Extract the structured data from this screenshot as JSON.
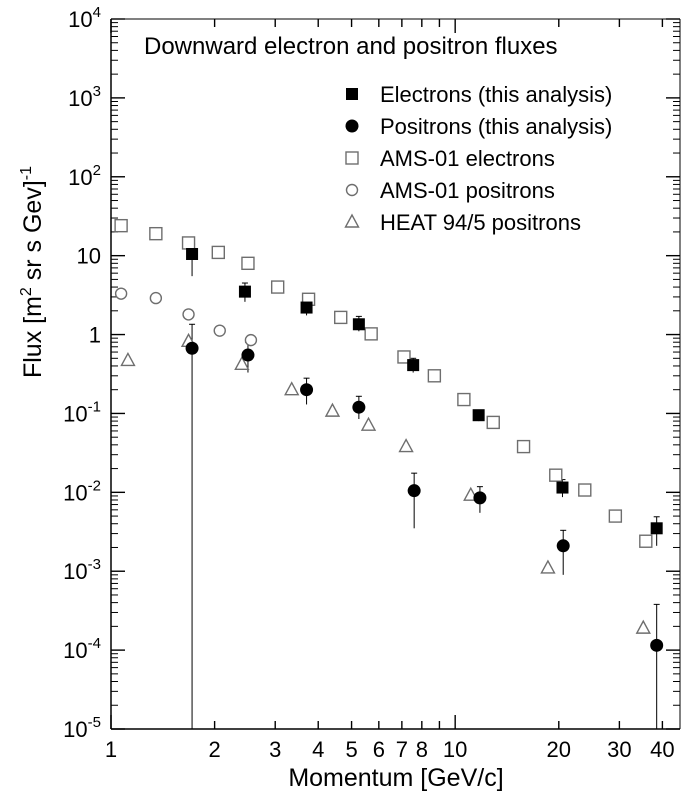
{
  "chart_data": {
    "type": "scatter",
    "title": "Downward electron and positron fluxes",
    "xlabel": "Momentum [GeV/c]",
    "ylabel_main": "Flux [m",
    "ylabel_sup2": "2",
    "ylabel_rest": " sr s Gev]",
    "ylabel_sup": "-1",
    "xscale": "log",
    "yscale": "log",
    "xlim": [
      1,
      45
    ],
    "ylim": [
      1e-05,
      10000
    ],
    "x_ticks": [
      {
        "v": 1,
        "label": "1"
      },
      {
        "v": 2,
        "label": "2"
      },
      {
        "v": 3,
        "label": "3"
      },
      {
        "v": 4,
        "label": "4"
      },
      {
        "v": 5,
        "label": "5"
      },
      {
        "v": 6,
        "label": "6"
      },
      {
        "v": 7,
        "label": "7"
      },
      {
        "v": 8,
        "label": "8"
      },
      {
        "v": 10,
        "label": "10"
      },
      {
        "v": 20,
        "label": "20"
      },
      {
        "v": 30,
        "label": "30"
      },
      {
        "v": 40,
        "label": "40"
      }
    ],
    "x_minor": [
      9
    ],
    "y_ticks": [
      {
        "exp": -5,
        "base": "10",
        "sup": "-5"
      },
      {
        "exp": -4,
        "base": "10",
        "sup": "-4"
      },
      {
        "exp": -3,
        "base": "10",
        "sup": "-3"
      },
      {
        "exp": -2,
        "base": "10",
        "sup": "-2"
      },
      {
        "exp": -1,
        "base": "10",
        "sup": "-1"
      },
      {
        "exp": 0,
        "base": "1",
        "sup": ""
      },
      {
        "exp": 1,
        "base": "10",
        "sup": ""
      },
      {
        "exp": 2,
        "base": "10",
        "sup": "2"
      },
      {
        "exp": 3,
        "base": "10",
        "sup": "3"
      },
      {
        "exp": 4,
        "base": "10",
        "sup": "4"
      }
    ],
    "legend_position": "top-right",
    "series": [
      {
        "name": "Electrons (this analysis)",
        "marker": "square-filled",
        "points": [
          {
            "x": 1.72,
            "y": 10.5,
            "lo": 5.5,
            "hi": 14
          },
          {
            "x": 2.45,
            "y": 3.5,
            "lo": 2.6,
            "hi": 4.5
          },
          {
            "x": 3.7,
            "y": 2.2,
            "lo": 1.75,
            "hi": 2.8
          },
          {
            "x": 5.25,
            "y": 1.35,
            "lo": 1.1,
            "hi": 1.7
          },
          {
            "x": 7.55,
            "y": 0.41,
            "lo": 0.33,
            "hi": 0.5
          },
          {
            "x": 11.7,
            "y": 0.095,
            "lo": 0.08,
            "hi": 0.11
          },
          {
            "x": 20.5,
            "y": 0.0115,
            "lo": 0.0087,
            "hi": 0.0145
          },
          {
            "x": 38.5,
            "y": 0.0035,
            "lo": 0.0021,
            "hi": 0.0049
          }
        ]
      },
      {
        "name": "Positrons (this analysis)",
        "marker": "circle-filled",
        "points": [
          {
            "x": 1.72,
            "y": 0.67,
            "lo": 1e-05,
            "hi": 1.35
          },
          {
            "x": 2.5,
            "y": 0.55,
            "lo": 0.33,
            "hi": 0.8
          },
          {
            "x": 3.7,
            "y": 0.2,
            "lo": 0.13,
            "hi": 0.28
          },
          {
            "x": 5.25,
            "y": 0.12,
            "lo": 0.085,
            "hi": 0.165
          },
          {
            "x": 7.6,
            "y": 0.0105,
            "lo": 0.0035,
            "hi": 0.0175
          },
          {
            "x": 11.8,
            "y": 0.0085,
            "lo": 0.0055,
            "hi": 0.0118
          },
          {
            "x": 20.6,
            "y": 0.0021,
            "lo": 0.0009,
            "hi": 0.0033
          },
          {
            "x": 38.5,
            "y": 0.000115,
            "lo": 1e-05,
            "hi": 0.00038
          }
        ]
      },
      {
        "name": "AMS-01 electrons",
        "marker": "square-open",
        "points": [
          {
            "x": 1.07,
            "y": 24
          },
          {
            "x": 1.35,
            "y": 19
          },
          {
            "x": 1.68,
            "y": 14.5
          },
          {
            "x": 2.05,
            "y": 11
          },
          {
            "x": 2.5,
            "y": 8
          },
          {
            "x": 3.05,
            "y": 4
          },
          {
            "x": 3.75,
            "y": 2.8
          },
          {
            "x": 4.65,
            "y": 1.65
          },
          {
            "x": 5.7,
            "y": 1.02
          },
          {
            "x": 7.1,
            "y": 0.52
          },
          {
            "x": 8.7,
            "y": 0.3
          },
          {
            "x": 10.6,
            "y": 0.15
          },
          {
            "x": 12.9,
            "y": 0.077
          },
          {
            "x": 15.8,
            "y": 0.038
          },
          {
            "x": 19.6,
            "y": 0.0165
          },
          {
            "x": 23.8,
            "y": 0.0107
          },
          {
            "x": 29.2,
            "y": 0.005
          },
          {
            "x": 35.8,
            "y": 0.0024
          }
        ]
      },
      {
        "name": "AMS-01 positrons",
        "marker": "circle-open",
        "points": [
          {
            "x": 1.07,
            "y": 3.3
          },
          {
            "x": 1.35,
            "y": 2.9
          },
          {
            "x": 1.68,
            "y": 1.8
          },
          {
            "x": 2.07,
            "y": 1.12
          },
          {
            "x": 2.55,
            "y": 0.85
          }
        ]
      },
      {
        "name": "HEAT 94/5 positrons",
        "marker": "triangle-open",
        "points": [
          {
            "x": 1.12,
            "y": 0.47
          },
          {
            "x": 1.68,
            "y": 0.82
          },
          {
            "x": 2.4,
            "y": 0.42
          },
          {
            "x": 3.35,
            "y": 0.2
          },
          {
            "x": 4.4,
            "y": 0.107
          },
          {
            "x": 5.6,
            "y": 0.071
          },
          {
            "x": 7.2,
            "y": 0.038
          },
          {
            "x": 11.1,
            "y": 0.0092
          },
          {
            "x": 18.6,
            "y": 0.0011
          },
          {
            "x": 35.2,
            "y": 0.00019
          }
        ]
      }
    ]
  },
  "colors": {
    "filled": "#000000",
    "open": "#6e6e6e",
    "axis": "#000000"
  }
}
